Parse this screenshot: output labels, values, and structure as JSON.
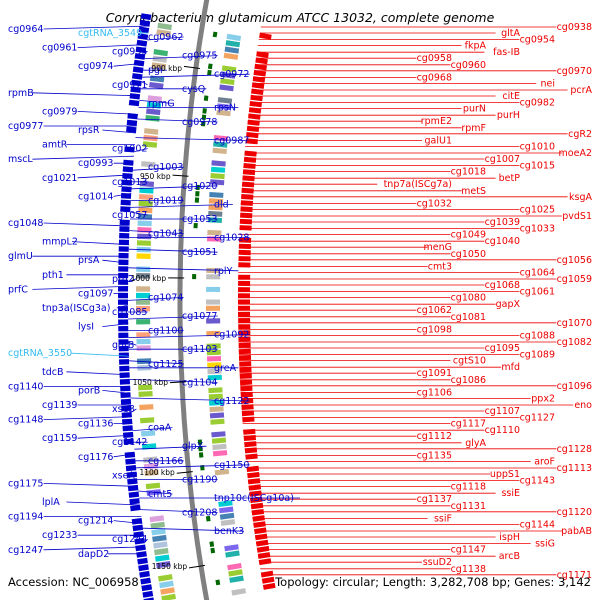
{
  "title": "Corynebacterium glutamicum ATCC 13032, complete genome",
  "footer": {
    "accession": "Accession: NC_006958",
    "summary": "Topology: circular; Length: 3,282,708 bp; Genes: 3,142"
  },
  "colors": {
    "forward": "#0000cc",
    "reverse": "#ee0000",
    "rna": "#33bbee",
    "backbone": "#808080",
    "tick_mark": "#006600"
  },
  "scale_ticks": [
    "900 kbp",
    "950 kbp",
    "1000 kbp",
    "1050 kbp",
    "1100 kbp",
    "1150 kbp"
  ],
  "forward_labels": [
    {
      "text": "cg0964",
      "type": "gene"
    },
    {
      "text": "cgtRNA_3549",
      "type": "rna"
    },
    {
      "text": "cg0962",
      "type": "gene"
    },
    {
      "text": "cg0961",
      "type": "gene"
    },
    {
      "text": "cg0955",
      "type": "gene"
    },
    {
      "text": "cg0975",
      "type": "gene"
    },
    {
      "text": "cg0974",
      "type": "gene"
    },
    {
      "text": "pgi",
      "type": "gene"
    },
    {
      "text": "cg0972",
      "type": "gene"
    },
    {
      "text": "cg0971",
      "type": "gene"
    },
    {
      "text": "cysQ",
      "type": "gene"
    },
    {
      "text": "rpmB",
      "type": "gene"
    },
    {
      "text": "rpmG",
      "type": "gene"
    },
    {
      "text": "rpsN",
      "type": "gene"
    },
    {
      "text": "cg0979",
      "type": "gene"
    },
    {
      "text": "cg0978",
      "type": "gene"
    },
    {
      "text": "cg0977",
      "type": "gene"
    },
    {
      "text": "rpsR",
      "type": "gene"
    },
    {
      "text": "cg0987",
      "type": "gene"
    },
    {
      "text": "amtR",
      "type": "gene"
    },
    {
      "text": "cg1002",
      "type": "gene"
    },
    {
      "text": "mscL",
      "type": "gene"
    },
    {
      "text": "cg0993",
      "type": "gene"
    },
    {
      "text": "cg1003",
      "type": "gene"
    },
    {
      "text": "cg1021",
      "type": "gene"
    },
    {
      "text": "cg1013",
      "type": "gene"
    },
    {
      "text": "cg1020",
      "type": "gene"
    },
    {
      "text": "cg1014",
      "type": "gene"
    },
    {
      "text": "cg1019",
      "type": "gene"
    },
    {
      "text": "dld",
      "type": "gene"
    },
    {
      "text": "cg1057",
      "type": "gene"
    },
    {
      "text": "cg1053",
      "type": "gene"
    },
    {
      "text": "cg1048",
      "type": "gene"
    },
    {
      "text": "cg1043",
      "type": "gene"
    },
    {
      "text": "cg1028",
      "type": "gene"
    },
    {
      "text": "mmpL2",
      "type": "gene"
    },
    {
      "text": "cg1051",
      "type": "gene"
    },
    {
      "text": "glmU",
      "type": "gene"
    },
    {
      "text": "prsA",
      "type": "gene"
    },
    {
      "text": "rplY",
      "type": "gene"
    },
    {
      "text": "pth1",
      "type": "gene"
    },
    {
      "text": "pth2",
      "type": "gene"
    },
    {
      "text": "prfC",
      "type": "gene"
    },
    {
      "text": "cg1097",
      "type": "gene"
    },
    {
      "text": "cg1074",
      "type": "gene"
    },
    {
      "text": "tnp3a(ISCg3a)",
      "type": "gene"
    },
    {
      "text": "cg1085",
      "type": "gene"
    },
    {
      "text": "cg1077",
      "type": "gene"
    },
    {
      "text": "lysI",
      "type": "gene"
    },
    {
      "text": "cg1100",
      "type": "gene"
    },
    {
      "text": "cg1092",
      "type": "gene"
    },
    {
      "text": "ggtB",
      "type": "gene"
    },
    {
      "text": "cg1103",
      "type": "gene"
    },
    {
      "text": "cgtRNA_3550",
      "type": "rna"
    },
    {
      "text": "cg1125",
      "type": "gene"
    },
    {
      "text": "greA",
      "type": "gene"
    },
    {
      "text": "tdcB",
      "type": "gene"
    },
    {
      "text": "cg1104",
      "type": "gene"
    },
    {
      "text": "cg1140",
      "type": "gene"
    },
    {
      "text": "porB",
      "type": "gene"
    },
    {
      "text": "cg1122",
      "type": "gene"
    },
    {
      "text": "cg1139",
      "type": "gene"
    },
    {
      "text": "xseB",
      "type": "gene"
    },
    {
      "text": "cg1148",
      "type": "gene"
    },
    {
      "text": "cg1136",
      "type": "gene"
    },
    {
      "text": "coaA",
      "type": "gene"
    },
    {
      "text": "cg1159",
      "type": "gene"
    },
    {
      "text": "cg1142",
      "type": "gene"
    },
    {
      "text": "glpX",
      "type": "gene"
    },
    {
      "text": "cg1176",
      "type": "gene"
    },
    {
      "text": "cg1166",
      "type": "gene"
    },
    {
      "text": "cg1150",
      "type": "gene"
    },
    {
      "text": "xseA",
      "type": "gene"
    },
    {
      "text": "cg1190",
      "type": "gene"
    },
    {
      "text": "cg1175",
      "type": "gene"
    },
    {
      "text": "cmt5",
      "type": "gene"
    },
    {
      "text": "tnp10c(ISCg10a)",
      "type": "gene"
    },
    {
      "text": "lplA",
      "type": "gene"
    },
    {
      "text": "cg1208",
      "type": "gene"
    },
    {
      "text": "cg1194",
      "type": "gene"
    },
    {
      "text": "cg1214",
      "type": "gene"
    },
    {
      "text": "benK3",
      "type": "gene"
    },
    {
      "text": "cg1233",
      "type": "gene"
    },
    {
      "text": "cg1244",
      "type": "gene"
    },
    {
      "text": "cg1247",
      "type": "gene"
    },
    {
      "text": "dapD2",
      "type": "gene"
    }
  ],
  "reverse_labels": [
    "cg0938",
    "gltA",
    "cg0954",
    "fkpA",
    "fas-IB",
    "cg0958",
    "cg0960",
    "cg0970",
    "cg0968",
    "nei",
    "pcrA",
    "citE",
    "cg0982",
    "purN",
    "purH",
    "rpmE2",
    "rpmF",
    "cgR2",
    "galU1",
    "cg1010",
    "moeA2",
    "cg1007",
    "cg1015",
    "cg1018",
    "betP",
    "tnp7a(ISCg7a)",
    "metS",
    "ksgA",
    "cg1032",
    "cg1025",
    "pvdS1",
    "cg1039",
    "cg1033",
    "cg1049",
    "cg1040",
    "menG",
    "cg1050",
    "cg1056",
    "cmt3",
    "cg1064",
    "cg1059",
    "cg1068",
    "cg1061",
    "cg1080",
    "gapX",
    "cg1062",
    "cg1081",
    "cg1070",
    "cg1098",
    "cg1088",
    "cg1082",
    "cg1095",
    "cg1089",
    "cgtS10",
    "mfd",
    "cg1091",
    "cg1086",
    "cg1096",
    "cg1106",
    "ppx2",
    "eno",
    "cg1107",
    "cg1127",
    "cg1117",
    "cg1110",
    "cg1112",
    "glyA",
    "cg1128",
    "cg1135",
    "aroF",
    "cg1113",
    "uppS1",
    "cg1143",
    "cg1118",
    "ssiE",
    "cg1137",
    "cg1131",
    "cg1120",
    "ssiF",
    "cg1144",
    "pabAB",
    "ispH",
    "ssiG",
    "cg1147",
    "arcB",
    "ssuD2",
    "cg1138",
    "cg1171"
  ]
}
